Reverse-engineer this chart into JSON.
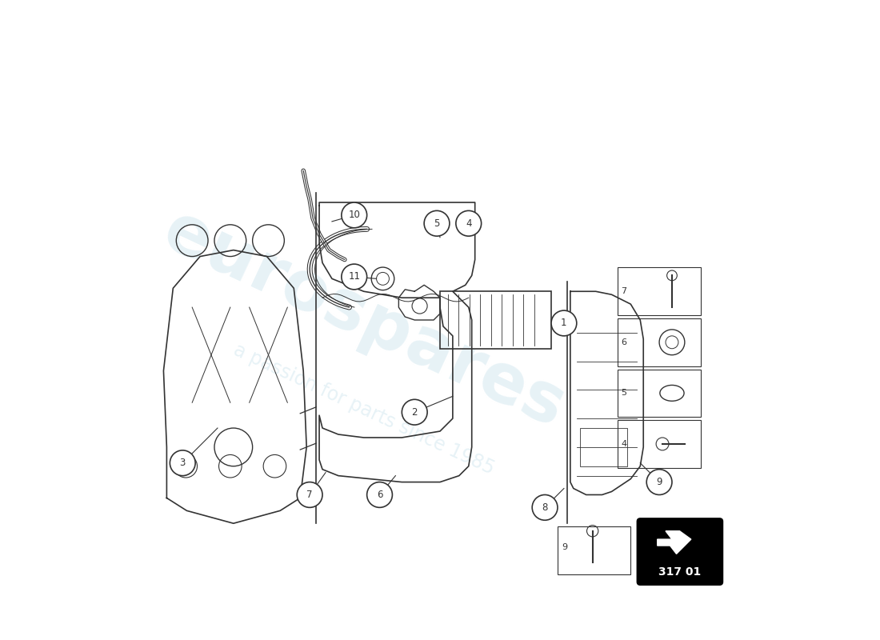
{
  "bg_color": "#ffffff",
  "watermark_text1": "eurospares",
  "watermark_text2": "a passion for parts since 1985",
  "watermark_color": "#d4e8f0",
  "part_number": "317 01",
  "line_color": "#333333",
  "circle_fill": "#ffffff"
}
